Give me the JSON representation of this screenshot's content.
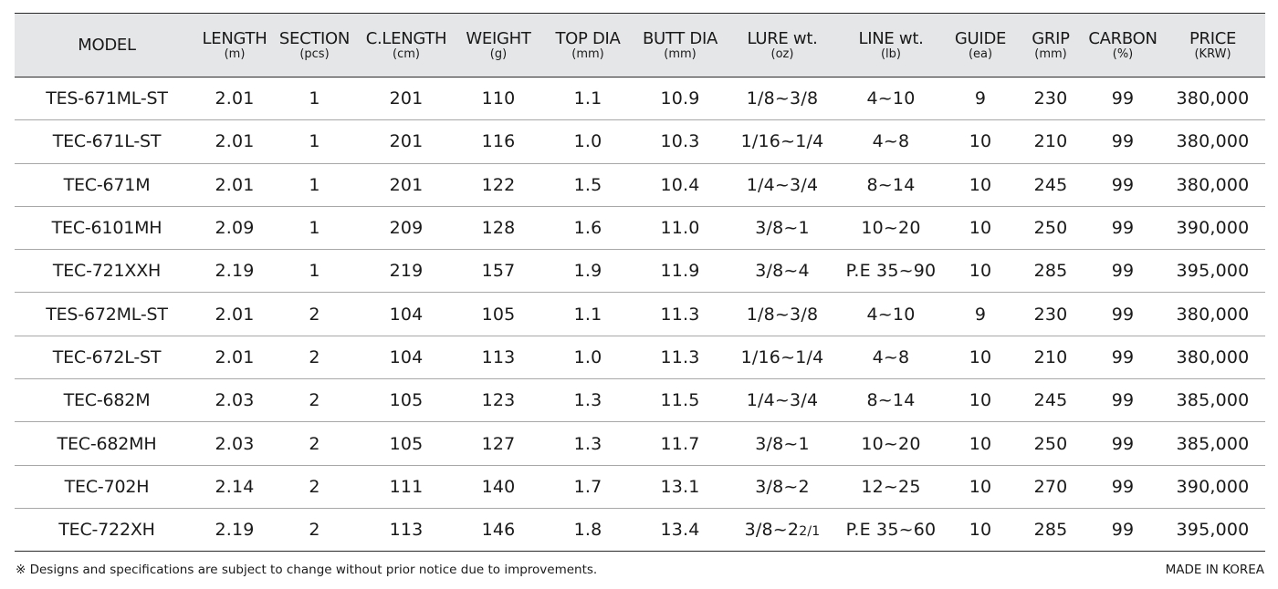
{
  "table": {
    "headers": [
      {
        "label": "MODEL",
        "unit": ""
      },
      {
        "label": "LENGTH",
        "unit": "(m)"
      },
      {
        "label": "SECTION",
        "unit": "(pcs)"
      },
      {
        "label": "C.LENGTH",
        "unit": "(cm)"
      },
      {
        "label": "WEIGHT",
        "unit": "(g)"
      },
      {
        "label": "TOP DIA",
        "unit": "(mm)"
      },
      {
        "label": "BUTT DIA",
        "unit": "(mm)"
      },
      {
        "label": "LURE wt.",
        "unit": "(oz)"
      },
      {
        "label": "LINE wt.",
        "unit": "(lb)"
      },
      {
        "label": "GUIDE",
        "unit": "(ea)"
      },
      {
        "label": "GRIP",
        "unit": "(mm)"
      },
      {
        "label": "CARBON",
        "unit": "(%)"
      },
      {
        "label": "PRICE",
        "unit": "(KRW)"
      }
    ],
    "rows": [
      {
        "model": "TES-671ML-ST",
        "length": "2.01",
        "section": "1",
        "c_length": "201",
        "weight": "110",
        "top_dia": "1.1",
        "butt_dia": "10.9",
        "lure_wt": "1/8~3/8",
        "lure_wt_tail": "",
        "line_wt": "4~10",
        "guide": "9",
        "grip": "230",
        "carbon": "99",
        "price": "380,000"
      },
      {
        "model": "TEC-671L-ST",
        "length": "2.01",
        "section": "1",
        "c_length": "201",
        "weight": "116",
        "top_dia": "1.0",
        "butt_dia": "10.3",
        "lure_wt": "1/16~1/4",
        "lure_wt_tail": "",
        "line_wt": "4~8",
        "guide": "10",
        "grip": "210",
        "carbon": "99",
        "price": "380,000"
      },
      {
        "model": "TEC-671M",
        "length": "2.01",
        "section": "1",
        "c_length": "201",
        "weight": "122",
        "top_dia": "1.5",
        "butt_dia": "10.4",
        "lure_wt": "1/4~3/4",
        "lure_wt_tail": "",
        "line_wt": "8~14",
        "guide": "10",
        "grip": "245",
        "carbon": "99",
        "price": "380,000"
      },
      {
        "model": "TEC-6101MH",
        "length": "2.09",
        "section": "1",
        "c_length": "209",
        "weight": "128",
        "top_dia": "1.6",
        "butt_dia": "11.0",
        "lure_wt": "3/8~1",
        "lure_wt_tail": "",
        "line_wt": "10~20",
        "guide": "10",
        "grip": "250",
        "carbon": "99",
        "price": "390,000"
      },
      {
        "model": "TEC-721XXH",
        "length": "2.19",
        "section": "1",
        "c_length": "219",
        "weight": "157",
        "top_dia": "1.9",
        "butt_dia": "11.9",
        "lure_wt": "3/8~4",
        "lure_wt_tail": "",
        "line_wt": "P.E 35~90",
        "guide": "10",
        "grip": "285",
        "carbon": "99",
        "price": "395,000"
      },
      {
        "model": "TES-672ML-ST",
        "length": "2.01",
        "section": "2",
        "c_length": "104",
        "weight": "105",
        "top_dia": "1.1",
        "butt_dia": "11.3",
        "lure_wt": "1/8~3/8",
        "lure_wt_tail": "",
        "line_wt": "4~10",
        "guide": "9",
        "grip": "230",
        "carbon": "99",
        "price": "380,000"
      },
      {
        "model": "TEC-672L-ST",
        "length": "2.01",
        "section": "2",
        "c_length": "104",
        "weight": "113",
        "top_dia": "1.0",
        "butt_dia": "11.3",
        "lure_wt": "1/16~1/4",
        "lure_wt_tail": "",
        "line_wt": "4~8",
        "guide": "10",
        "grip": "210",
        "carbon": "99",
        "price": "380,000"
      },
      {
        "model": "TEC-682M",
        "length": "2.03",
        "section": "2",
        "c_length": "105",
        "weight": "123",
        "top_dia": "1.3",
        "butt_dia": "11.5",
        "lure_wt": "1/4~3/4",
        "lure_wt_tail": "",
        "line_wt": "8~14",
        "guide": "10",
        "grip": "245",
        "carbon": "99",
        "price": "385,000"
      },
      {
        "model": "TEC-682MH",
        "length": "2.03",
        "section": "2",
        "c_length": "105",
        "weight": "127",
        "top_dia": "1.3",
        "butt_dia": "11.7",
        "lure_wt": "3/8~1",
        "lure_wt_tail": "",
        "line_wt": "10~20",
        "guide": "10",
        "grip": "250",
        "carbon": "99",
        "price": "385,000"
      },
      {
        "model": "TEC-702H",
        "length": "2.14",
        "section": "2",
        "c_length": "111",
        "weight": "140",
        "top_dia": "1.7",
        "butt_dia": "13.1",
        "lure_wt": "3/8~2",
        "lure_wt_tail": "",
        "line_wt": "12~25",
        "guide": "10",
        "grip": "270",
        "carbon": "99",
        "price": "390,000"
      },
      {
        "model": "TEC-722XH",
        "length": "2.19",
        "section": "2",
        "c_length": "113",
        "weight": "146",
        "top_dia": "1.8",
        "butt_dia": "13.4",
        "lure_wt": "3/8~2",
        "lure_wt_tail": "2/1",
        "line_wt": "P.E 35~60",
        "guide": "10",
        "grip": "285",
        "carbon": "99",
        "price": "395,000"
      }
    ]
  },
  "footer": {
    "note": "※ Designs and specifications are subject to change without prior notice due to improvements.",
    "origin": "MADE IN KOREA"
  }
}
